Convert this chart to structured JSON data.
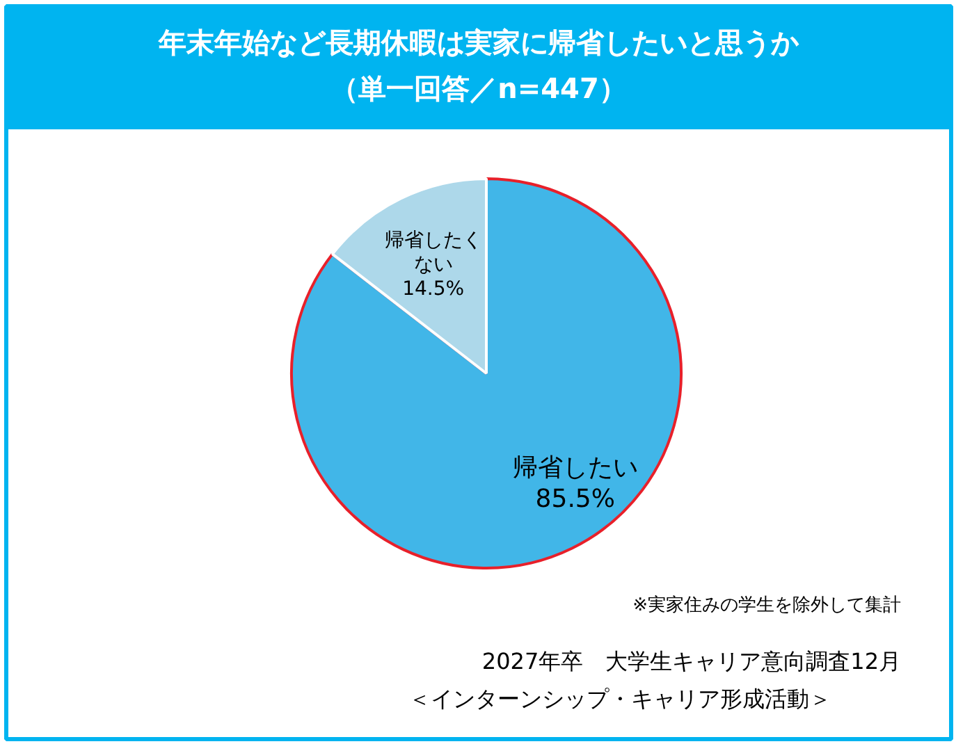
{
  "chart_data": {
    "type": "pie",
    "title": "年末年始など長期休暇は実家に帰省したいと思うか",
    "subtitle": "（単一回答／n=447）",
    "categories": [
      "帰省したい",
      "帰省したくない"
    ],
    "values": [
      85.5,
      14.5
    ],
    "colors": [
      "#41b6e8",
      "#add8ea"
    ],
    "value_labels": [
      "85.5%",
      "14.5%"
    ],
    "legend": false,
    "annotations": [
      "※実家住みの学生を除外して集計",
      "2027年卒　大学生キャリア意向調査12月",
      "＜インターンシップ・キャリア形成活動＞"
    ]
  }
}
